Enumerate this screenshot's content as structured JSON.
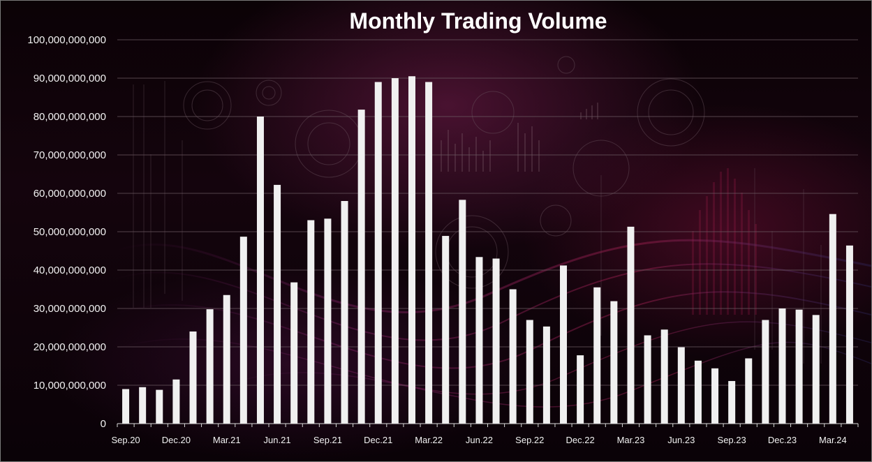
{
  "colors": {
    "bar": "#f0f0f0",
    "text": "#f2f2f2",
    "grid": "#6b5a62",
    "background": "#0b0206",
    "accent": "#8a1f4f"
  },
  "chart_data": {
    "type": "bar",
    "title": "Monthly Trading Volume",
    "xlabel": "",
    "ylabel": "",
    "ylim": [
      0,
      100000000000
    ],
    "yticks": [
      0,
      10000000000,
      20000000000,
      30000000000,
      40000000000,
      50000000000,
      60000000000,
      70000000000,
      80000000000,
      90000000000,
      100000000000
    ],
    "ytick_labels": [
      "0",
      "10,000,000,000",
      "20,000,000,000",
      "30,000,000,000",
      "40,000,000,000",
      "50,000,000,000",
      "60,000,000,000",
      "70,000,000,000",
      "80,000,000,000",
      "90,000,000,000",
      "100,000,000,000"
    ],
    "grid": true,
    "legend": "none",
    "categories": [
      "Sep.20",
      "Oct.20",
      "Nov.20",
      "Dec.20",
      "Jan.21",
      "Feb.21",
      "Mar.21",
      "Apr.21",
      "May.21",
      "Jun.21",
      "Jul.21",
      "Aug.21",
      "Sep.21",
      "Oct.21",
      "Nov.21",
      "Dec.21",
      "Jan.22",
      "Feb.22",
      "Mar.22",
      "Apr.22",
      "May.22",
      "Jun.22",
      "Jul.22",
      "Aug.22",
      "Sep.22",
      "Oct.22",
      "Nov.22",
      "Dec.22",
      "Jan.23",
      "Feb.23",
      "Mar.23",
      "Apr.23",
      "May.23",
      "Jun.23",
      "Jul.23",
      "Aug.23",
      "Sep.23",
      "Oct.23",
      "Nov.23",
      "Dec.23",
      "Jan.24",
      "Feb.24",
      "Mar.24",
      "Apr.24"
    ],
    "tick_label_categories": [
      "Sep.20",
      "Dec.20",
      "Mar.21",
      "Jun.21",
      "Sep.21",
      "Dec.21",
      "Mar.22",
      "Jun.22",
      "Sep.22",
      "Dec.22",
      "Mar.23",
      "Jun.23",
      "Sep.23",
      "Dec.23",
      "Mar.24"
    ],
    "values": [
      9000000000,
      9500000000,
      8800000000,
      11500000000,
      24000000000,
      29800000000,
      33500000000,
      48700000000,
      80000000000,
      62200000000,
      36800000000,
      53000000000,
      53400000000,
      58000000000,
      81800000000,
      89000000000,
      90000000000,
      90500000000,
      89000000000,
      48900000000,
      58300000000,
      43400000000,
      43000000000,
      35000000000,
      27000000000,
      25300000000,
      41200000000,
      17800000000,
      35500000000,
      31900000000,
      51300000000,
      23000000000,
      24500000000,
      19900000000,
      16400000000,
      14400000000,
      11100000000,
      17000000000,
      27000000000,
      30000000000,
      29700000000,
      28300000000,
      54600000000,
      46400000000
    ]
  }
}
